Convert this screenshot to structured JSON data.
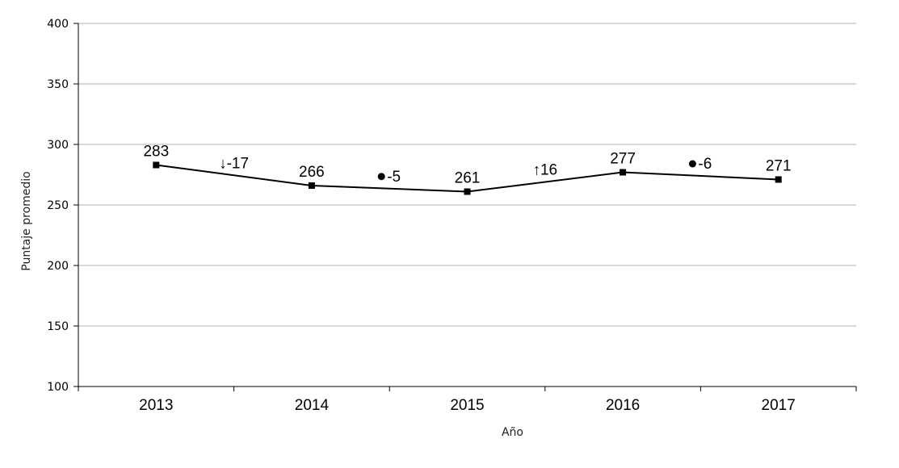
{
  "chart_data": {
    "type": "line",
    "categories": [
      "2013",
      "2014",
      "2015",
      "2016",
      "2017"
    ],
    "values": [
      283,
      266,
      261,
      277,
      271
    ],
    "data_labels": [
      "283",
      "266",
      "261",
      "277",
      "271"
    ],
    "changes": [
      {
        "text": "↓-17",
        "symbol": "arrow-down"
      },
      {
        "text": "-5",
        "symbol": "dot"
      },
      {
        "text": "↑16",
        "symbol": "arrow-up"
      },
      {
        "text": "-6",
        "symbol": "dot"
      }
    ],
    "xlabel": "Año",
    "ylabel": "Puntaje promedio",
    "ylim": [
      100,
      400
    ],
    "yticks": [
      100,
      150,
      200,
      250,
      300,
      350,
      400
    ],
    "grid": true,
    "colors": {
      "line": "#000000",
      "grid": "#b0b0b0",
      "axis": "#000000"
    }
  }
}
